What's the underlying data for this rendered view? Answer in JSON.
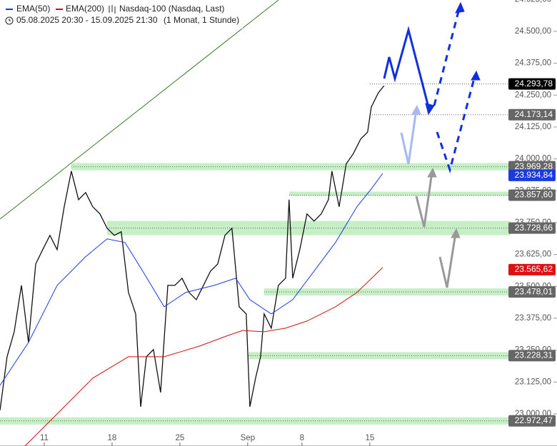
{
  "chart_data": {
    "type": "line",
    "subtitle": "05.08.2025 20:30 - 15.09.2025 21:30",
    "period": "(1 Monat, 1 Stunde)",
    "xlim": [
      -3.26,
      37.8
    ],
    "ylim": [
      22874,
      24623
    ],
    "xticks": [
      {
        "value": 0,
        "label": "11"
      },
      {
        "value": 5,
        "label": "18"
      },
      {
        "value": 10,
        "label": "25"
      },
      {
        "value": 15,
        "label": "Sep"
      },
      {
        "value": 19,
        "label": "8"
      },
      {
        "value": 24,
        "label": "15"
      }
    ],
    "yticks": [
      {
        "value": 23000,
        "label": "23.000,00"
      },
      {
        "value": 23125,
        "label": "23.125,00"
      },
      {
        "value": 23250,
        "label": "23.250,00"
      },
      {
        "value": 23375,
        "label": "23.375,00"
      },
      {
        "value": 23500,
        "label": "23.500,00"
      },
      {
        "value": 23625,
        "label": "23.625,00"
      },
      {
        "value": 23750,
        "label": "23.750,00"
      },
      {
        "value": 23875,
        "label": "23.875,00"
      },
      {
        "value": 24000,
        "label": "24.000,00"
      },
      {
        "value": 24125,
        "label": "24.125,00"
      },
      {
        "value": 24250,
        "label": "24.250,00"
      },
      {
        "value": 24375,
        "label": "24.375,00"
      },
      {
        "value": 24500,
        "label": "24.500,00"
      },
      {
        "value": 24625,
        "label": "24.625,00"
      }
    ],
    "series": [
      {
        "name": "Nasdaq-100 (Nasdaq, Last)",
        "color": "#111111",
        "x": [
          -3.26,
          -2.74,
          -2.21,
          -1.68,
          -1.16,
          -0.63,
          -0.11,
          0.42,
          0.95,
          1.47,
          2,
          2.53,
          3.05,
          3.58,
          4.11,
          4.63,
          5.16,
          5.68,
          6.21,
          6.74,
          7.11,
          7.53,
          8.05,
          8.58,
          9.11,
          9.63,
          10.16,
          10.68,
          11.21,
          11.74,
          12.26,
          12.79,
          13.32,
          13.84,
          14.37,
          14.89,
          15.16,
          15.58,
          15.95,
          16.21,
          16.74,
          17.26,
          17.79,
          18.05,
          18.32,
          18.84,
          19.37,
          19.89,
          20.42,
          20.95,
          21.21,
          21.74,
          22.26,
          22.79,
          23.32,
          23.84,
          24.11,
          24.63,
          25.05
        ],
        "values": [
          23014,
          23224,
          23322,
          23504,
          23280,
          23588,
          23644,
          23700,
          23644,
          23812,
          23952,
          23840,
          23868,
          23812,
          23784,
          23728,
          23700,
          23714,
          23476,
          23392,
          23028,
          23224,
          23252,
          23084,
          23504,
          23504,
          23532,
          23476,
          23448,
          23504,
          23560,
          23588,
          23700,
          23728,
          23420,
          23392,
          23028,
          23140,
          23224,
          23392,
          23336,
          23504,
          23532,
          23840,
          23532,
          23644,
          23784,
          23756,
          23784,
          23840,
          23952,
          23812,
          23980,
          24021,
          24077,
          24105,
          24203,
          24259,
          24287
        ]
      },
      {
        "name": "EMA(50)",
        "color": "#1a3be0",
        "x": [
          -3.26,
          -1.16,
          0.95,
          3.05,
          4.63,
          5.95,
          7.26,
          8.84,
          10.42,
          12.53,
          14.11,
          15.16,
          16.74,
          18.32,
          19.89,
          21.47,
          23.05,
          24.11,
          24.95
        ],
        "values": [
          23112,
          23280,
          23504,
          23616,
          23686,
          23672,
          23560,
          23420,
          23476,
          23504,
          23532,
          23448,
          23392,
          23448,
          23560,
          23672,
          23812,
          23882,
          23943
        ]
      },
      {
        "name": "EMA(200)",
        "color": "#d01010",
        "x": [
          -1.42,
          0.95,
          3.58,
          6.21,
          8.84,
          11.47,
          13.58,
          14.63,
          16.21,
          17.79,
          19.37,
          21.47,
          23.05,
          24.95
        ],
        "values": [
          22874,
          23000,
          23140,
          23224,
          23224,
          23266,
          23308,
          23327,
          23322,
          23336,
          23364,
          23420,
          23476,
          23574
        ]
      }
    ],
    "levels": [
      {
        "value": 24293.78,
        "label": "24.293,78",
        "color": "#000000",
        "zone": false
      },
      {
        "value": 24173.14,
        "label": "24.173,14",
        "color": "#666666",
        "zone": false
      },
      {
        "value": 23969.28,
        "label": "23.969,28",
        "color": "#666666",
        "zone": true
      },
      {
        "value": 23934.84,
        "label": "23.934,84",
        "color": "#1a3be0",
        "zone": false
      },
      {
        "value": 23857.6,
        "label": "23.857,60",
        "color": "#666666",
        "zone": true
      },
      {
        "value": 23728.66,
        "label": "23.728,66",
        "color": "#666666",
        "zone": true
      },
      {
        "value": 23565.62,
        "label": "23.565,62",
        "color": "#e01010",
        "zone": false
      },
      {
        "value": 23478.01,
        "label": "23.478,01",
        "color": "#666666",
        "zone": true
      },
      {
        "value": 23228.31,
        "label": "23.228,31",
        "color": "#666666",
        "zone": true
      },
      {
        "value": 22972.47,
        "label": "22.972,47",
        "color": "#666666",
        "zone": true
      }
    ]
  }
}
